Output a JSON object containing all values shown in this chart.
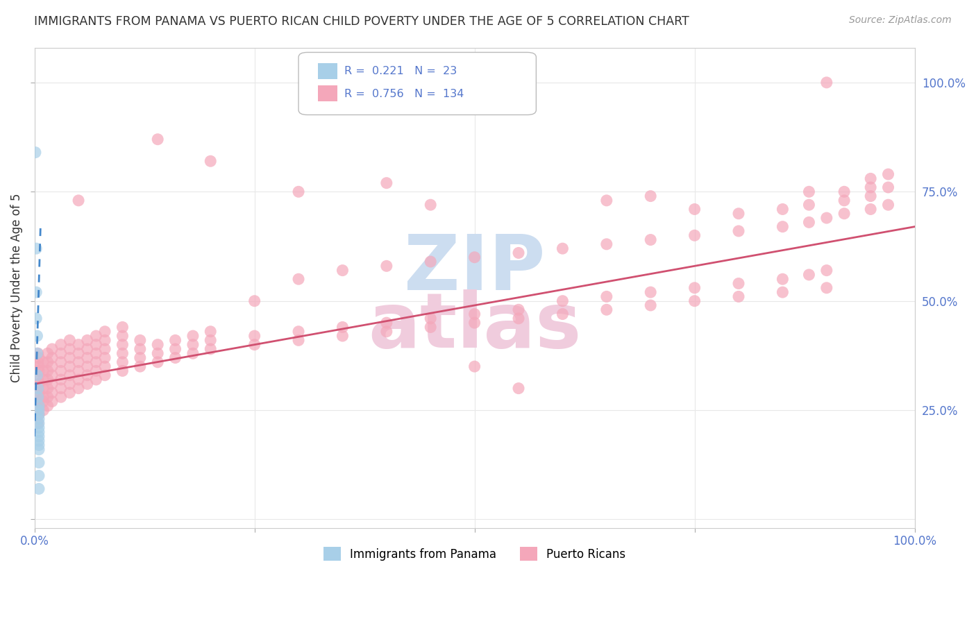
{
  "title": "IMMIGRANTS FROM PANAMA VS PUERTO RICAN CHILD POVERTY UNDER THE AGE OF 5 CORRELATION CHART",
  "source": "Source: ZipAtlas.com",
  "ylabel": "Child Poverty Under the Age of 5",
  "xlim": [
    0.0,
    1.0
  ],
  "ylim": [
    -0.02,
    1.08
  ],
  "panama_color": "#a8cfe8",
  "puertorico_color": "#f4a7ba",
  "trendline_panama_color": "#4488cc",
  "trendline_puertorico_color": "#d05070",
  "background_color": "#ffffff",
  "grid_color": "#e8e8e8",
  "title_color": "#333333",
  "tick_color": "#5577cc",
  "watermark_zip_color": "#ccddf0",
  "watermark_atlas_color": "#f0ccdd",
  "scatter_panama": [
    [
      0.001,
      0.84
    ],
    [
      0.002,
      0.62
    ],
    [
      0.002,
      0.52
    ],
    [
      0.002,
      0.46
    ],
    [
      0.003,
      0.42
    ],
    [
      0.003,
      0.38
    ],
    [
      0.003,
      0.33
    ],
    [
      0.004,
      0.3
    ],
    [
      0.004,
      0.28
    ],
    [
      0.005,
      0.26
    ],
    [
      0.005,
      0.25
    ],
    [
      0.005,
      0.24
    ],
    [
      0.005,
      0.23
    ],
    [
      0.005,
      0.22
    ],
    [
      0.005,
      0.21
    ],
    [
      0.005,
      0.2
    ],
    [
      0.005,
      0.19
    ],
    [
      0.005,
      0.18
    ],
    [
      0.005,
      0.17
    ],
    [
      0.005,
      0.16
    ],
    [
      0.005,
      0.13
    ],
    [
      0.005,
      0.1
    ],
    [
      0.005,
      0.07
    ]
  ],
  "scatter_puertorico": [
    [
      0.004,
      0.22
    ],
    [
      0.004,
      0.25
    ],
    [
      0.004,
      0.27
    ],
    [
      0.004,
      0.28
    ],
    [
      0.004,
      0.3
    ],
    [
      0.004,
      0.32
    ],
    [
      0.004,
      0.36
    ],
    [
      0.004,
      0.38
    ],
    [
      0.005,
      0.24
    ],
    [
      0.005,
      0.26
    ],
    [
      0.005,
      0.29
    ],
    [
      0.005,
      0.31
    ],
    [
      0.005,
      0.34
    ],
    [
      0.005,
      0.35
    ],
    [
      0.005,
      0.37
    ],
    [
      0.01,
      0.25
    ],
    [
      0.01,
      0.27
    ],
    [
      0.01,
      0.28
    ],
    [
      0.01,
      0.3
    ],
    [
      0.01,
      0.32
    ],
    [
      0.01,
      0.34
    ],
    [
      0.01,
      0.36
    ],
    [
      0.015,
      0.26
    ],
    [
      0.015,
      0.28
    ],
    [
      0.015,
      0.3
    ],
    [
      0.015,
      0.32
    ],
    [
      0.015,
      0.34
    ],
    [
      0.015,
      0.36
    ],
    [
      0.015,
      0.38
    ],
    [
      0.02,
      0.27
    ],
    [
      0.02,
      0.29
    ],
    [
      0.02,
      0.31
    ],
    [
      0.02,
      0.33
    ],
    [
      0.02,
      0.35
    ],
    [
      0.02,
      0.37
    ],
    [
      0.02,
      0.39
    ],
    [
      0.03,
      0.28
    ],
    [
      0.03,
      0.3
    ],
    [
      0.03,
      0.32
    ],
    [
      0.03,
      0.34
    ],
    [
      0.03,
      0.36
    ],
    [
      0.03,
      0.38
    ],
    [
      0.03,
      0.4
    ],
    [
      0.04,
      0.29
    ],
    [
      0.04,
      0.31
    ],
    [
      0.04,
      0.33
    ],
    [
      0.04,
      0.35
    ],
    [
      0.04,
      0.37
    ],
    [
      0.04,
      0.39
    ],
    [
      0.04,
      0.41
    ],
    [
      0.05,
      0.3
    ],
    [
      0.05,
      0.32
    ],
    [
      0.05,
      0.34
    ],
    [
      0.05,
      0.36
    ],
    [
      0.05,
      0.38
    ],
    [
      0.05,
      0.4
    ],
    [
      0.05,
      0.73
    ],
    [
      0.06,
      0.31
    ],
    [
      0.06,
      0.33
    ],
    [
      0.06,
      0.35
    ],
    [
      0.06,
      0.37
    ],
    [
      0.06,
      0.39
    ],
    [
      0.06,
      0.41
    ],
    [
      0.07,
      0.32
    ],
    [
      0.07,
      0.34
    ],
    [
      0.07,
      0.36
    ],
    [
      0.07,
      0.38
    ],
    [
      0.07,
      0.4
    ],
    [
      0.07,
      0.42
    ],
    [
      0.08,
      0.33
    ],
    [
      0.08,
      0.35
    ],
    [
      0.08,
      0.37
    ],
    [
      0.08,
      0.39
    ],
    [
      0.08,
      0.41
    ],
    [
      0.08,
      0.43
    ],
    [
      0.1,
      0.34
    ],
    [
      0.1,
      0.36
    ],
    [
      0.1,
      0.38
    ],
    [
      0.1,
      0.4
    ],
    [
      0.1,
      0.42
    ],
    [
      0.1,
      0.44
    ],
    [
      0.12,
      0.35
    ],
    [
      0.12,
      0.37
    ],
    [
      0.12,
      0.39
    ],
    [
      0.12,
      0.41
    ],
    [
      0.14,
      0.36
    ],
    [
      0.14,
      0.38
    ],
    [
      0.14,
      0.4
    ],
    [
      0.14,
      0.87
    ],
    [
      0.16,
      0.37
    ],
    [
      0.16,
      0.39
    ],
    [
      0.16,
      0.41
    ],
    [
      0.18,
      0.38
    ],
    [
      0.18,
      0.4
    ],
    [
      0.18,
      0.42
    ],
    [
      0.2,
      0.39
    ],
    [
      0.2,
      0.41
    ],
    [
      0.2,
      0.43
    ],
    [
      0.2,
      0.82
    ],
    [
      0.25,
      0.4
    ],
    [
      0.25,
      0.42
    ],
    [
      0.25,
      0.5
    ],
    [
      0.3,
      0.41
    ],
    [
      0.3,
      0.43
    ],
    [
      0.3,
      0.55
    ],
    [
      0.3,
      0.75
    ],
    [
      0.35,
      0.42
    ],
    [
      0.35,
      0.44
    ],
    [
      0.35,
      0.57
    ],
    [
      0.4,
      0.43
    ],
    [
      0.4,
      0.45
    ],
    [
      0.4,
      0.58
    ],
    [
      0.4,
      0.77
    ],
    [
      0.45,
      0.44
    ],
    [
      0.45,
      0.46
    ],
    [
      0.45,
      0.59
    ],
    [
      0.45,
      0.72
    ],
    [
      0.5,
      0.45
    ],
    [
      0.5,
      0.47
    ],
    [
      0.5,
      0.6
    ],
    [
      0.5,
      0.35
    ],
    [
      0.55,
      0.46
    ],
    [
      0.55,
      0.48
    ],
    [
      0.55,
      0.61
    ],
    [
      0.55,
      0.3
    ],
    [
      0.6,
      0.47
    ],
    [
      0.6,
      0.5
    ],
    [
      0.6,
      0.62
    ],
    [
      0.65,
      0.48
    ],
    [
      0.65,
      0.51
    ],
    [
      0.65,
      0.63
    ],
    [
      0.65,
      0.73
    ],
    [
      0.7,
      0.49
    ],
    [
      0.7,
      0.52
    ],
    [
      0.7,
      0.64
    ],
    [
      0.7,
      0.74
    ],
    [
      0.75,
      0.5
    ],
    [
      0.75,
      0.53
    ],
    [
      0.75,
      0.65
    ],
    [
      0.75,
      0.71
    ],
    [
      0.8,
      0.51
    ],
    [
      0.8,
      0.54
    ],
    [
      0.8,
      0.66
    ],
    [
      0.8,
      0.7
    ],
    [
      0.85,
      0.52
    ],
    [
      0.85,
      0.55
    ],
    [
      0.85,
      0.67
    ],
    [
      0.85,
      0.71
    ],
    [
      0.88,
      0.68
    ],
    [
      0.88,
      0.72
    ],
    [
      0.88,
      0.56
    ],
    [
      0.88,
      0.75
    ],
    [
      0.9,
      0.53
    ],
    [
      0.9,
      0.57
    ],
    [
      0.9,
      0.69
    ],
    [
      0.9,
      1.0
    ],
    [
      0.92,
      0.7
    ],
    [
      0.92,
      0.73
    ],
    [
      0.92,
      0.75
    ],
    [
      0.95,
      0.71
    ],
    [
      0.95,
      0.74
    ],
    [
      0.95,
      0.76
    ],
    [
      0.95,
      0.78
    ],
    [
      0.97,
      0.72
    ],
    [
      0.97,
      0.76
    ],
    [
      0.97,
      0.79
    ]
  ],
  "trendline_pr_x0": 0.0,
  "trendline_pr_y0": 0.31,
  "trendline_pr_x1": 1.0,
  "trendline_pr_y1": 0.67,
  "trendline_pan_x0": 0.0,
  "trendline_pan_y0": 0.19,
  "trendline_pan_x1": 0.007,
  "trendline_pan_y1": 0.68
}
